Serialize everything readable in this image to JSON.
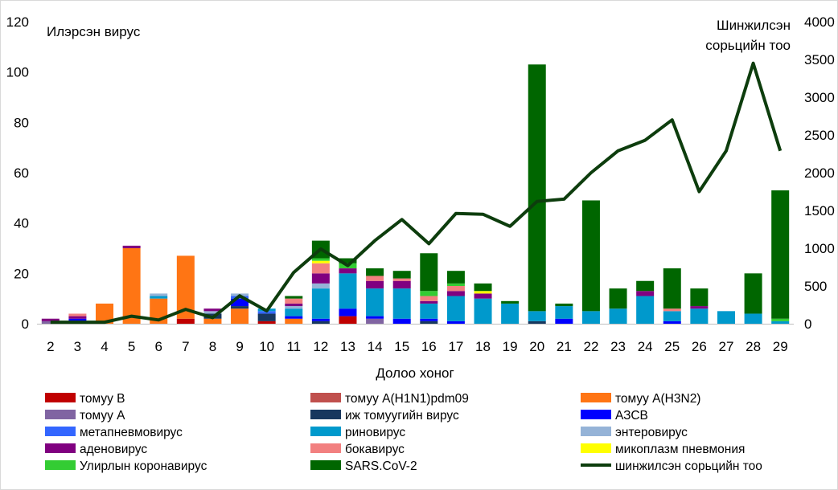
{
  "chart_data": {
    "type": "bar",
    "stacked": true,
    "title": "",
    "ylabel_left": "Илэрсэн вирус",
    "ylabel_right": "Шинжилсэн сорьцийн тоо",
    "ylabel_right_lines": [
      "Шинжилсэн",
      "сорьцийн тоо"
    ],
    "xlabel": "Долоо хоног",
    "ylim_left": [
      0,
      120
    ],
    "yticks_left": [
      0,
      20,
      40,
      60,
      80,
      100,
      120
    ],
    "ylim_right": [
      0,
      4000
    ],
    "yticks_right": [
      0,
      500,
      1000,
      1500,
      2000,
      2500,
      3000,
      3500,
      4000
    ],
    "grid": false,
    "legend_position": "bottom",
    "categories": [
      "2",
      "3",
      "4",
      "5",
      "6",
      "7",
      "8",
      "9",
      "10",
      "11",
      "12",
      "13",
      "14",
      "15",
      "16",
      "17",
      "18",
      "19",
      "20",
      "21",
      "22",
      "23",
      "24",
      "25",
      "26",
      "27",
      "28",
      "29"
    ],
    "series": [
      {
        "name": "томуу В",
        "color": "#c00000",
        "values": [
          0,
          0,
          0,
          0,
          0,
          2,
          0,
          0,
          1,
          0,
          0,
          3,
          0,
          0,
          0,
          0,
          0,
          0,
          0,
          0,
          0,
          0,
          0,
          0,
          0,
          0,
          0,
          0
        ]
      },
      {
        "name": "томуу A(H1N1)pdm09",
        "color": "#c0504d",
        "values": [
          0,
          0,
          0,
          0,
          0,
          0,
          0,
          0,
          0,
          0,
          0,
          0,
          0,
          0,
          0,
          0,
          0,
          0,
          0,
          0,
          0,
          0,
          0,
          0,
          0,
          0,
          0,
          0
        ]
      },
      {
        "name": "томуу A(H3N2)",
        "color": "#ff7514",
        "values": [
          0,
          1,
          8,
          30,
          10,
          25,
          2,
          6,
          0,
          2,
          0,
          0,
          0,
          0,
          0,
          0,
          0,
          0,
          0,
          0,
          0,
          0,
          0,
          0,
          0,
          0,
          0,
          0
        ]
      },
      {
        "name": "томуу A",
        "color": "#8064a2",
        "values": [
          1,
          0,
          0,
          0,
          0,
          0,
          0,
          0,
          0,
          0,
          0,
          0,
          2,
          0,
          0,
          0,
          0,
          0,
          0,
          0,
          0,
          0,
          0,
          0,
          0,
          0,
          0,
          0
        ]
      },
      {
        "name": "иж томуугийн вирус",
        "color": "#17375e",
        "values": [
          0,
          0,
          0,
          0,
          0,
          0,
          2,
          1,
          3,
          0,
          1,
          0,
          0,
          0,
          1,
          0,
          0,
          0,
          1,
          0,
          0,
          0,
          0,
          0,
          0,
          0,
          0,
          0
        ]
      },
      {
        "name": "АЗСВ",
        "color": "#0000ff",
        "values": [
          0,
          1,
          0,
          0,
          0,
          0,
          0,
          3,
          0,
          1,
          1,
          3,
          1,
          2,
          1,
          1,
          0,
          0,
          0,
          2,
          0,
          0,
          0,
          1,
          0,
          0,
          0,
          0
        ]
      },
      {
        "name": "метапневмовирус",
        "color": "#3366ff",
        "values": [
          0,
          0,
          0,
          0,
          0,
          0,
          0,
          1,
          1,
          0,
          0,
          0,
          0,
          0,
          0,
          0,
          0,
          0,
          0,
          0,
          0,
          0,
          0,
          0,
          0,
          0,
          0,
          0
        ]
      },
      {
        "name": "риновирус",
        "color": "#0099cc",
        "values": [
          0,
          0,
          0,
          0,
          1,
          0,
          0,
          0,
          1,
          3,
          12,
          14,
          11,
          12,
          6,
          10,
          10,
          8,
          4,
          5,
          5,
          6,
          11,
          4,
          6,
          5,
          4,
          1
        ]
      },
      {
        "name": "энтеровирус",
        "color": "#95b3d7",
        "values": [
          0,
          0,
          0,
          0,
          1,
          0,
          1,
          1,
          0,
          1,
          2,
          0,
          0,
          0,
          0,
          0,
          0,
          0,
          0,
          0,
          0,
          0,
          0,
          0,
          0,
          0,
          0,
          0
        ]
      },
      {
        "name": "аденовирус",
        "color": "#800080",
        "values": [
          1,
          1,
          0,
          1,
          0,
          0,
          1,
          0,
          0,
          1,
          4,
          2,
          3,
          3,
          1,
          2,
          2,
          0,
          0,
          0,
          0,
          0,
          2,
          0,
          1,
          0,
          0,
          0
        ]
      },
      {
        "name": "бокавирус",
        "color": "#f28080",
        "values": [
          0,
          1,
          0,
          0,
          0,
          0,
          0,
          0,
          0,
          2,
          4,
          0,
          2,
          1,
          2,
          2,
          0,
          0,
          0,
          0,
          0,
          0,
          0,
          1,
          0,
          0,
          0,
          0
        ]
      },
      {
        "name": "микоплазм пневмония",
        "color": "#ffff00",
        "values": [
          0,
          0,
          0,
          0,
          0,
          0,
          0,
          0,
          0,
          0,
          1,
          0,
          0,
          0,
          0,
          0,
          1,
          0,
          0,
          0,
          0,
          0,
          0,
          0,
          0,
          0,
          0,
          0
        ]
      },
      {
        "name": "Улирлын коронавирус",
        "color": "#33cc33",
        "values": [
          0,
          0,
          0,
          0,
          0,
          0,
          0,
          0,
          0,
          0,
          1,
          2,
          0,
          0,
          2,
          1,
          0,
          0,
          0,
          0,
          0,
          0,
          0,
          0,
          0,
          0,
          0,
          1
        ]
      },
      {
        "name": "SARS.CoV-2",
        "color": "#006600",
        "values": [
          0,
          0,
          0,
          0,
          0,
          0,
          0,
          0,
          0,
          1,
          7,
          2,
          3,
          3,
          15,
          5,
          3,
          1,
          98,
          1,
          44,
          8,
          4,
          16,
          7,
          0,
          16,
          51
        ]
      }
    ],
    "line": {
      "name": "шинжилсэн сорьцийн тоо",
      "color": "#0d3d0d",
      "axis": "right",
      "values": [
        20,
        20,
        20,
        100,
        50,
        190,
        80,
        370,
        170,
        680,
        990,
        770,
        1100,
        1380,
        1060,
        1460,
        1450,
        1290,
        1620,
        1650,
        2000,
        2290,
        2430,
        2700,
        1750,
        2290,
        3450,
        2290
      ]
    }
  }
}
